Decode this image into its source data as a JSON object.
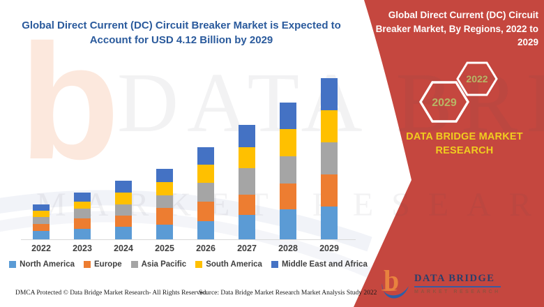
{
  "chart_data": {
    "type": "bar",
    "stacked": true,
    "title": "Global Direct Current (DC) Circuit Breaker Market is Expected to Account for USD 4.12 Billion by 2029",
    "unit": "USD Billion",
    "categories": [
      "2022",
      "2023",
      "2024",
      "2025",
      "2026",
      "2027",
      "2028",
      "2029"
    ],
    "series": [
      {
        "name": "North America",
        "color": "#5b9bd5",
        "values": [
          0.21,
          0.27,
          0.33,
          0.37,
          0.47,
          0.62,
          0.77,
          0.84
        ]
      },
      {
        "name": "Europe",
        "color": "#ed7d31",
        "values": [
          0.18,
          0.27,
          0.28,
          0.43,
          0.49,
          0.53,
          0.66,
          0.82
        ]
      },
      {
        "name": "Asia Pacific",
        "color": "#a5a5a5",
        "values": [
          0.18,
          0.24,
          0.28,
          0.33,
          0.49,
          0.68,
          0.7,
          0.82
        ]
      },
      {
        "name": "South America",
        "color": "#ffc000",
        "values": [
          0.16,
          0.19,
          0.3,
          0.33,
          0.46,
          0.53,
          0.69,
          0.82
        ]
      },
      {
        "name": "Middle East and Africa",
        "color": "#4472c4",
        "values": [
          0.17,
          0.22,
          0.31,
          0.34,
          0.44,
          0.57,
          0.69,
          0.82
        ]
      }
    ],
    "ylim": [
      0,
      4.5
    ],
    "grid": false,
    "legend_position": "bottom",
    "total_2029": "4.12"
  },
  "side_panel": {
    "title": "Global Direct Current (DC) Circuit Breaker Market, By Regions, 2022 to 2029",
    "badge_start_year": "2022",
    "badge_end_year": "2029",
    "brand_text": "DATA BRIDGE MARKET RESEARCH"
  },
  "logo": {
    "glyph": "b",
    "name": "DATA BRIDGE",
    "subtitle": "MARKET RESEARCH"
  },
  "footer": {
    "dmca_text": "DMCA Protected © Data Bridge Market Research- All Rights Reserved.",
    "source_text": "Source: Data Bridge Market Research Market Analysis Study 2022"
  },
  "watermark": {
    "glyph": "b",
    "row1": "DATA BRIDGE",
    "row2": "MARKET RESEARCH"
  },
  "colors": {
    "band_red": "#c5473f",
    "title_blue": "#2a5a9c",
    "brand_yellow": "#f0cd1f",
    "hex_year_text": "#b8b565",
    "axis_line": "#d9d9d9"
  }
}
